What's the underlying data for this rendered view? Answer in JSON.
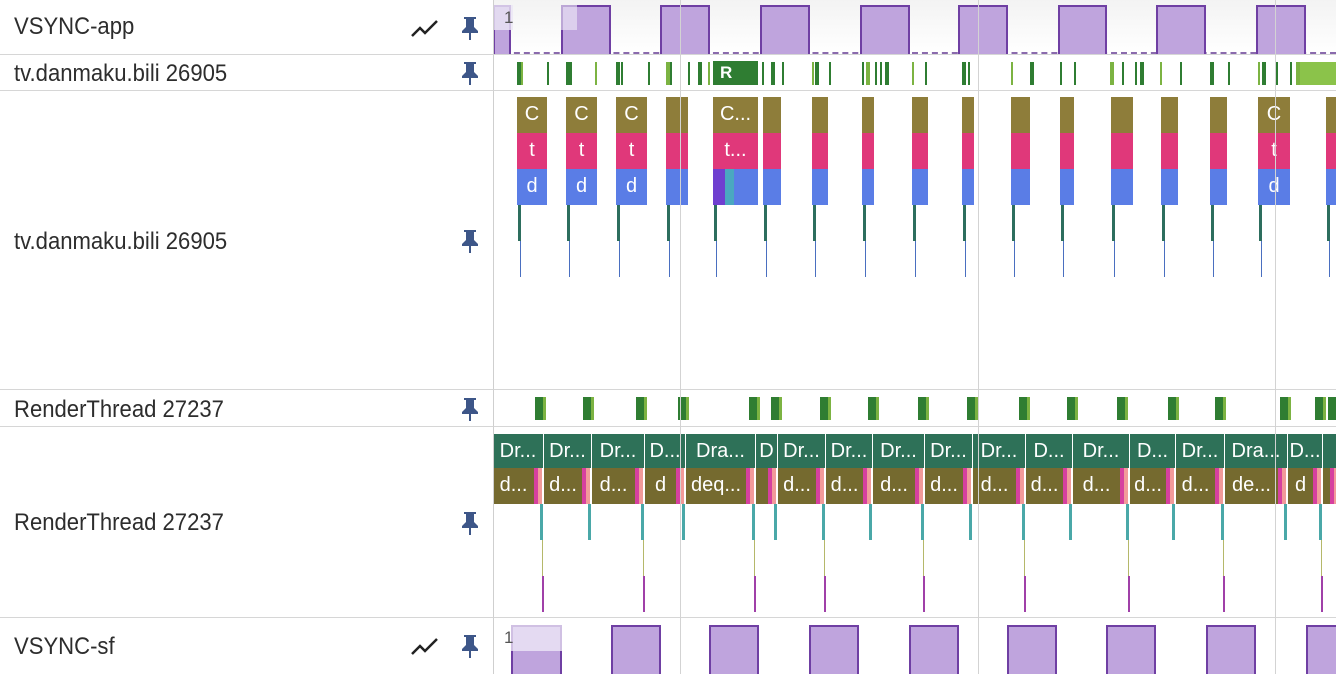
{
  "tracks": [
    {
      "name": "VSYNC-app",
      "has_chart": true,
      "value_label": "1"
    },
    {
      "name": "tv.danmaku.bili 26905",
      "summary_label": "R"
    },
    {
      "name": "tv.danmaku.bili 26905"
    },
    {
      "name": "RenderThread 27237"
    },
    {
      "name": "RenderThread 27237"
    },
    {
      "name": "VSYNC-sf",
      "has_chart": true,
      "value_label": "1"
    }
  ],
  "main_thread": {
    "row1_labels": [
      "C",
      "C",
      "C",
      "",
      "C...",
      "",
      "",
      "",
      "",
      "",
      "",
      "",
      "",
      "",
      "",
      "C",
      ""
    ],
    "row2_labels": [
      "t",
      "t",
      "t",
      "",
      "t...",
      "",
      "",
      "",
      "",
      "",
      "",
      "",
      "",
      "",
      "",
      "t",
      ""
    ],
    "row3_labels": [
      "d",
      "d",
      "d",
      "",
      "",
      "",
      "",
      "",
      "",
      "",
      "",
      "",
      "",
      "",
      "",
      "d",
      ""
    ]
  },
  "render_thread": {
    "row1_labels": [
      "Dr...",
      "Dr...",
      "Dr...",
      "D...",
      "Dra...",
      "D",
      "Dr...",
      "Dr...",
      "Dr...",
      "Dr...",
      "Dr...",
      "D...",
      "Dr...",
      "D...",
      "Dr...",
      "Dra...",
      "D...",
      ""
    ],
    "row2_labels": [
      "d...",
      "d...",
      "d...",
      "d",
      "deq...",
      "",
      "d...",
      "d...",
      "d...",
      "d...",
      "d...",
      "d...",
      "d...",
      "d...",
      "d...",
      "de...",
      "d",
      ""
    ]
  },
  "colors": {
    "vsync_fill": "#bfa4dd",
    "vsync_border": "#6f3fa3",
    "choreographer": "#8e7d3a",
    "traversal": "#e0387a",
    "draw": "#5a7de6",
    "drawframe": "#2e7158",
    "dequeue": "#756a2f",
    "running": "#2f7d32"
  }
}
